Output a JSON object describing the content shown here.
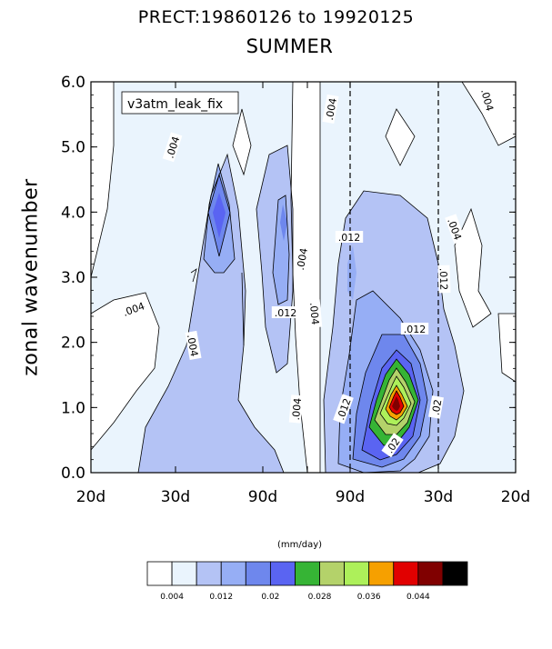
{
  "title": {
    "line1": "PRECT:19860126 to 19920125",
    "line2": "SUMMER"
  },
  "chart_data": {
    "type": "heatmap",
    "subtype": "wavenumber-frequency contour plot",
    "title": "PRECT:19860126 to 19920125",
    "subtitle": "SUMMER",
    "ylabel": "zonal wavenumber",
    "xlabel": "",
    "legend_box": "v3atm_leak_fix",
    "ylim": [
      0,
      6
    ],
    "x_ticks": [
      "20d",
      "30d",
      "90d",
      "",
      "90d",
      "30d",
      "20d"
    ],
    "y_ticks": [
      "0.0",
      "1.0",
      "2.0",
      "3.0",
      "4.0",
      "5.0",
      "6.0"
    ],
    "contour_labels": [
      ".004",
      ".004",
      ".004",
      ".004",
      ".004",
      ".004",
      ".004",
      ".004",
      ".012",
      ".012",
      ".012",
      ".012",
      ".012",
      ".02"
    ],
    "colorbar": {
      "units": "(mm/day)",
      "colors": [
        "#ffffff",
        "#eaf4fd",
        "#b4c3f5",
        "#96aef5",
        "#6e87ed",
        "#5a64f2",
        "#36b435",
        "#b4d26a",
        "#adf05a",
        "#f6a000",
        "#e10000",
        "#800000",
        "#000000"
      ],
      "tick_labels": [
        "0.004",
        "0.012",
        "0.02",
        "0.028",
        "0.036",
        "0.044"
      ]
    }
  }
}
